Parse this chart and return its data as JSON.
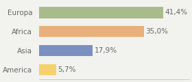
{
  "categories": [
    "Europa",
    "Africa",
    "Asia",
    "America"
  ],
  "values": [
    41.4,
    35.0,
    17.9,
    5.7
  ],
  "labels": [
    "41,4%",
    "35,0%",
    "17,9%",
    "5,7%"
  ],
  "bar_colors": [
    "#a8bb8a",
    "#e8b07a",
    "#7b8fc0",
    "#f5d06e"
  ],
  "background_color": "#f2f2ee",
  "text_color": "#666666",
  "label_fontsize": 7.5,
  "tick_fontsize": 7.5,
  "xlim": [
    0,
    50
  ],
  "bar_height": 0.6
}
